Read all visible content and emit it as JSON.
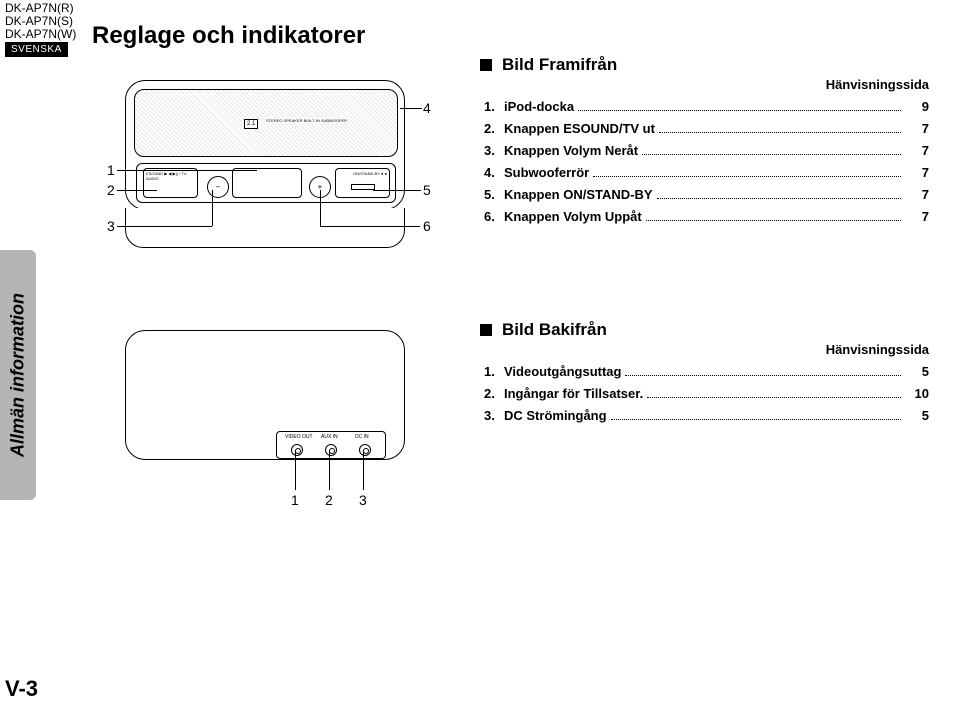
{
  "models": [
    "DK-AP7N(R)",
    "DK-AP7N(S)",
    "DK-AP7N(W)"
  ],
  "language_badge": "SVENSKA",
  "title": "Reglage och indikatorer",
  "sidebar_label": "Allmän information",
  "page_number": "V-3",
  "front": {
    "heading": "Bild Framifrån",
    "ref_heading": "Hänvisningssida",
    "logo21": "2.1",
    "logo21_txt": "STEREO SPEAKER\nBUILT-IN SUBWOOFER",
    "block_a_txt": "ESOUND\n▶ ◀\n▶|| / TV-AUDIO",
    "block_c_txt": "ON/STAND-BY\n● ●",
    "callouts_left": [
      "1",
      "2",
      "3"
    ],
    "callouts_right": [
      "4",
      "5",
      "6"
    ],
    "items": [
      {
        "n": "1.",
        "label": "iPod-docka",
        "page": "9"
      },
      {
        "n": "2.",
        "label": "Knappen ESOUND/TV ut",
        "page": "7"
      },
      {
        "n": "3.",
        "label": "Knappen Volym Neråt",
        "page": "7"
      },
      {
        "n": "4.",
        "label": "Subwooferrör",
        "page": "7"
      },
      {
        "n": "5.",
        "label": "Knappen ON/STAND-BY",
        "page": "7"
      },
      {
        "n": "6.",
        "label": "Knappen Volym Uppåt",
        "page": "7"
      }
    ]
  },
  "back": {
    "heading": "Bild Bakifrån",
    "ref_heading": "Hänvisningssida",
    "jacks": [
      "VIDEO OUT",
      "AUX IN",
      "DC IN"
    ],
    "dc_symbol": "⎓",
    "callouts": [
      "1",
      "2",
      "3"
    ],
    "items": [
      {
        "n": "1.",
        "label": "Videoutgångsuttag",
        "page": "5"
      },
      {
        "n": "2.",
        "label": "Ingångar för Tillsatser.",
        "page": "10"
      },
      {
        "n": "3.",
        "label": "DC Strömingång",
        "page": "5"
      }
    ]
  }
}
